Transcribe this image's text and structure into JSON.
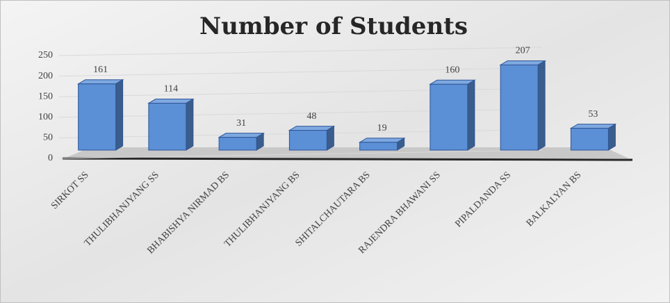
{
  "chart_data": {
    "type": "bar3d",
    "title": "Number of Students",
    "categories": [
      "SIRKOT SS",
      "THULIBHANJYANG SS",
      "BHABISHYA NIRMAD BS",
      "THULIBHANJYANG BS",
      "SHITALCHAUTARA BS",
      "RAJENDRA BHAWANI SS",
      "PIPALDANDA SS",
      "BALKALYAN BS"
    ],
    "values": [
      161,
      114,
      31,
      48,
      19,
      160,
      207,
      53
    ],
    "color": "#5b8fd6",
    "ylim": [
      0,
      250
    ],
    "yticks": [
      0,
      50,
      100,
      150,
      200,
      250
    ],
    "grid": true
  }
}
